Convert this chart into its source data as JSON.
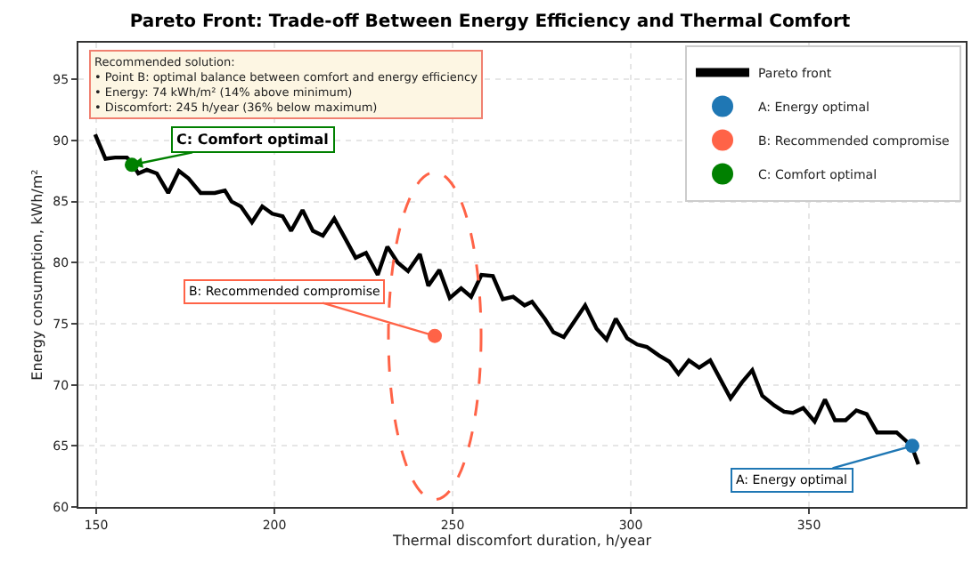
{
  "chart_data": {
    "type": "line",
    "title": "Pareto Front: Trade-off Between Energy Efficiency and Thermal Comfort",
    "xlabel": "Thermal discomfort duration, h/year",
    "ylabel": "Energy consumption, kWh/m²",
    "xlim": [
      145,
      394
    ],
    "ylim": [
      60,
      98
    ],
    "xticks": [
      150,
      200,
      250,
      300,
      350
    ],
    "yticks": [
      60,
      65,
      70,
      75,
      80,
      85,
      90,
      95
    ],
    "grid": true,
    "legend": "top right",
    "series": [
      {
        "name": "Pareto front",
        "color": "#000000",
        "marker": "none",
        "line_style": "solid",
        "x": [
          149.7,
          152.6,
          155.3,
          158.6,
          159.9,
          161.8,
          164.2,
          167.0,
          170.2,
          173.2,
          175.9,
          179.3,
          183.3,
          186.1,
          188.0,
          190.6,
          193.7,
          196.6,
          199.4,
          202.3,
          204.7,
          207.9,
          210.8,
          213.6,
          216.8,
          220.0,
          222.8,
          225.7,
          229.0,
          231.7,
          234.6,
          237.5,
          240.8,
          243.2,
          246.3,
          249.2,
          252.4,
          255.2,
          258.1,
          261.3,
          264.1,
          267.0,
          270.2,
          272.3,
          275.9,
          278.3,
          281.2,
          287.2,
          290.4,
          293.2,
          295.8,
          299.0,
          301.8,
          304.5,
          307.9,
          310.8,
          313.4,
          316.3,
          319.2,
          322.3,
          328.0,
          331.2,
          334.1,
          336.9,
          340.3,
          343.0,
          345.5,
          348.4,
          351.6,
          354.5,
          357.3,
          360.3,
          363.3,
          366.2,
          369.1,
          374.6,
          378.8,
          380.7
        ],
        "values": [
          90.5,
          88.5,
          88.6,
          88.6,
          88.2,
          87.3,
          87.6,
          87.3,
          85.7,
          87.5,
          86.9,
          85.7,
          85.7,
          85.9,
          85.0,
          84.6,
          83.3,
          84.6,
          84.0,
          83.8,
          82.6,
          84.3,
          82.6,
          82.2,
          83.6,
          81.9,
          80.4,
          80.8,
          79.0,
          81.3,
          80.0,
          79.3,
          80.7,
          78.1,
          79.4,
          77.1,
          77.9,
          77.2,
          79.0,
          78.9,
          77.0,
          77.2,
          76.5,
          76.8,
          75.4,
          74.3,
          73.9,
          76.5,
          74.6,
          73.7,
          75.4,
          73.8,
          73.3,
          73.1,
          72.4,
          71.9,
          70.9,
          72.0,
          71.4,
          72.0,
          68.9,
          70.2,
          71.2,
          69.1,
          68.3,
          67.8,
          67.7,
          68.1,
          67.0,
          68.8,
          67.1,
          67.1,
          67.9,
          67.6,
          66.1,
          66.1,
          65.0,
          63.5
        ]
      },
      {
        "name": "A: Energy optimal",
        "type": "scatter",
        "color": "#1f77b4",
        "marker": "circle",
        "x": [
          379
        ],
        "values": [
          65
        ]
      },
      {
        "name": "B: Recommended compromise",
        "type": "scatter",
        "color": "#ff6347",
        "marker": "circle",
        "x": [
          245
        ],
        "values": [
          74
        ]
      },
      {
        "name": "C: Comfort optimal",
        "type": "scatter",
        "color": "#008000",
        "marker": "circle",
        "x": [
          160
        ],
        "values": [
          88
        ]
      }
    ],
    "annotations": [
      "Recommended solution:\n• Point B: optimal balance between comfort and energy efficiency\n• Energy: 74 kWh/m² (14% above minimum)\n• Discomfort: 245 h/year (36% below maximum)",
      {
        "text": "C: Comfort optimal",
        "x": 160,
        "y": 88
      },
      {
        "text": "B: Recommended compromise",
        "x": 245,
        "y": 74
      },
      {
        "text": "A: Energy optimal",
        "x": 379,
        "y": 65
      }
    ]
  }
}
